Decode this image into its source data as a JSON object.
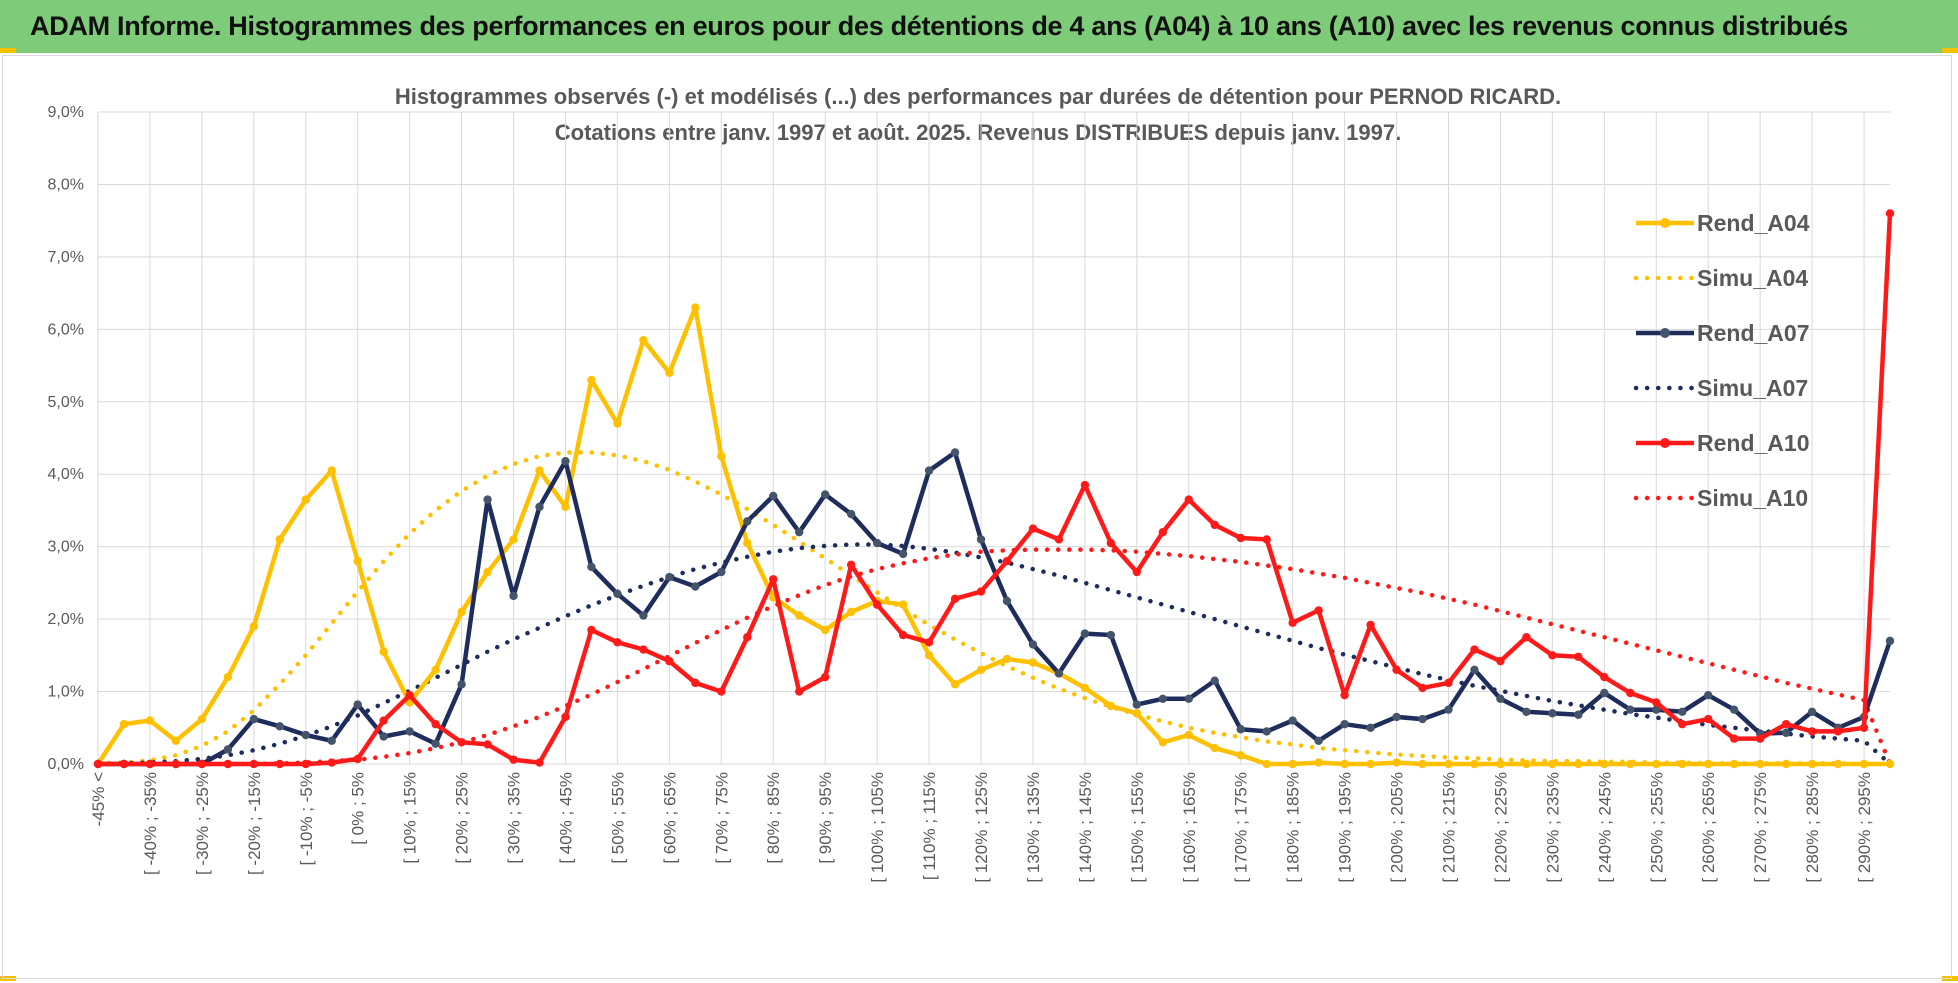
{
  "header": {
    "title": "ADAM Informe. Histogrammes des performances en euros pour des détentions de 4 ans (A04) à 10 ans (A10) avec les revenus connus distribués"
  },
  "colors": {
    "banner": "#7ecb7a",
    "A04": "#FFC000",
    "A07": "#1F2D5C",
    "A10": "#FF1A1A",
    "marker07": "#44546A",
    "grid": "#d9d9d9"
  },
  "chart_data": {
    "type": "line",
    "title": "Histogrammes observés (-) et modélisés (...) des performances par durées de détention pour PERNOD RICARD.",
    "subtitle": "Cotations entre janv. 1997 et août. 2025. Revenus DISTRIBUES depuis janv. 1997.",
    "ylim": [
      0,
      9
    ],
    "y_ticks": [
      "0,0%",
      "1,0%",
      "2,0%",
      "3,0%",
      "4,0%",
      "5,0%",
      "6,0%",
      "7,0%",
      "8,0%",
      "9,0%"
    ],
    "grid": true,
    "legend_position": "right",
    "x_tick_labels": [
      "-45% <",
      "[ -40% ; -35%",
      "[ -30% ; -25%",
      "[ -20% ; -15%",
      "[ -10% ; -5%",
      "[ 0% ; 5%",
      "[ 10% ; 15%",
      "[ 20% ; 25%",
      "[ 30% ; 35%",
      "[ 40% ; 45%",
      "[ 50% ; 55%",
      "[ 60% ; 65%",
      "[ 70% ; 75%",
      "[ 80% ; 85%",
      "[ 90% ; 95%",
      "[ 100% ; 105%",
      "[ 110% ; 115%",
      "[ 120% ; 125%",
      "[ 130% ; 135%",
      "[ 140% ; 145%",
      "[ 150% ; 155%",
      "[ 160% ; 165%",
      "[ 170% ; 175%",
      "[ 180% ; 185%",
      "[ 190% ; 195%",
      "[ 200% ; 205%",
      "[ 210% ; 215%",
      "[ 220% ; 225%",
      "[ 230% ; 235%",
      "[ 240% ; 245%",
      "[ 250% ; 255%",
      "[ 260% ; 265%",
      "[ 270% ; 275%",
      "[ 280% ; 285%",
      "[ 290% ; 295%"
    ],
    "series": [
      {
        "name": "Rend_A04",
        "style": "solid",
        "values": [
          0.0,
          0.55,
          0.6,
          0.32,
          0.62,
          1.2,
          1.9,
          3.1,
          3.65,
          4.05,
          2.8,
          1.55,
          0.85,
          1.3,
          2.1,
          2.65,
          3.1,
          4.05,
          3.55,
          5.3,
          4.7,
          5.85,
          5.4,
          6.3,
          4.25,
          3.05,
          2.3,
          2.05,
          1.85,
          2.1,
          2.25,
          2.2,
          1.5,
          1.1,
          1.3,
          1.45,
          1.4,
          1.25,
          1.05,
          0.8,
          0.7,
          0.3,
          0.4,
          0.22,
          0.12,
          0.0,
          0.0,
          0.02,
          0.0,
          0.0,
          0.02,
          0.0,
          0.0,
          0.0,
          0.0,
          0.0,
          0.0,
          0.0,
          0.0,
          0.0,
          0.0,
          0.0,
          0.0,
          0.0,
          0.0,
          0.0,
          0.0,
          0.0,
          0.0,
          0.0
        ]
      },
      {
        "name": "Simu_A04",
        "style": "dotted",
        "values": [
          0.01,
          0.02,
          0.05,
          0.12,
          0.25,
          0.45,
          0.74,
          1.1,
          1.5,
          1.94,
          2.38,
          2.8,
          3.18,
          3.5,
          3.77,
          3.98,
          4.14,
          4.25,
          4.3,
          4.3,
          4.26,
          4.18,
          4.06,
          3.9,
          3.72,
          3.52,
          3.3,
          3.07,
          2.84,
          2.6,
          2.37,
          2.14,
          1.92,
          1.72,
          1.53,
          1.35,
          1.19,
          1.04,
          0.91,
          0.79,
          0.68,
          0.59,
          0.5,
          0.43,
          0.37,
          0.31,
          0.27,
          0.22,
          0.19,
          0.16,
          0.13,
          0.11,
          0.09,
          0.08,
          0.06,
          0.05,
          0.04,
          0.04,
          0.03,
          0.03,
          0.02,
          0.02,
          0.01,
          0.01,
          0.01,
          0.01,
          0.01,
          0.01,
          0.0,
          0.0
        ]
      },
      {
        "name": "Rend_A07",
        "style": "solid",
        "values": [
          0.0,
          0.0,
          0.0,
          0.0,
          0.0,
          0.2,
          0.62,
          0.52,
          0.4,
          0.32,
          0.82,
          0.38,
          0.45,
          0.28,
          1.1,
          3.65,
          2.32,
          3.55,
          4.18,
          2.72,
          2.35,
          2.05,
          2.58,
          2.45,
          2.65,
          3.35,
          3.7,
          3.2,
          3.72,
          3.45,
          3.05,
          2.9,
          4.05,
          4.3,
          3.1,
          2.25,
          1.65,
          1.25,
          1.8,
          1.78,
          0.82,
          0.9,
          0.9,
          1.15,
          0.48,
          0.45,
          0.6,
          0.32,
          0.55,
          0.5,
          0.65,
          0.62,
          0.75,
          1.3,
          0.9,
          0.72,
          0.7,
          0.68,
          0.98,
          0.75,
          0.75,
          0.72,
          0.95,
          0.75,
          0.42,
          0.43,
          0.72,
          0.5,
          0.65,
          1.7
        ]
      },
      {
        "name": "Simu_A07",
        "style": "dotted",
        "values": [
          0.0,
          0.01,
          0.02,
          0.04,
          0.07,
          0.12,
          0.19,
          0.28,
          0.39,
          0.52,
          0.67,
          0.84,
          1.01,
          1.19,
          1.37,
          1.55,
          1.72,
          1.88,
          2.04,
          2.19,
          2.33,
          2.46,
          2.58,
          2.69,
          2.78,
          2.86,
          2.93,
          2.98,
          3.01,
          3.03,
          3.03,
          3.01,
          2.97,
          2.92,
          2.85,
          2.78,
          2.69,
          2.6,
          2.5,
          2.4,
          2.3,
          2.2,
          2.1,
          2.0,
          1.9,
          1.8,
          1.7,
          1.6,
          1.51,
          1.42,
          1.33,
          1.24,
          1.16,
          1.08,
          1.01,
          0.94,
          0.87,
          0.81,
          0.75,
          0.69,
          0.64,
          0.59,
          0.54,
          0.5,
          0.46,
          0.42,
          0.38,
          0.35,
          0.32,
          0.0
        ]
      },
      {
        "name": "Rend_A10",
        "style": "solid",
        "values": [
          0.0,
          0.0,
          0.0,
          0.0,
          0.0,
          0.0,
          0.0,
          0.0,
          0.0,
          0.02,
          0.07,
          0.6,
          0.95,
          0.55,
          0.3,
          0.27,
          0.06,
          0.02,
          0.65,
          1.85,
          1.68,
          1.58,
          1.42,
          1.12,
          1.0,
          1.75,
          2.55,
          1.0,
          1.2,
          2.75,
          2.2,
          1.78,
          1.68,
          2.28,
          2.38,
          2.8,
          3.25,
          3.1,
          3.85,
          3.05,
          2.65,
          3.2,
          3.65,
          3.3,
          3.12,
          3.1,
          1.95,
          2.12,
          0.95,
          1.92,
          1.3,
          1.05,
          1.12,
          1.58,
          1.42,
          1.75,
          1.5,
          1.48,
          1.2,
          0.98,
          0.85,
          0.55,
          0.62,
          0.35,
          0.35,
          0.55,
          0.45,
          0.45,
          0.5,
          7.6
        ]
      },
      {
        "name": "Simu_A10",
        "style": "dotted",
        "values": [
          0.0,
          0.0,
          0.0,
          0.0,
          0.0,
          0.0,
          0.0,
          0.01,
          0.02,
          0.04,
          0.06,
          0.1,
          0.15,
          0.22,
          0.3,
          0.4,
          0.52,
          0.65,
          0.8,
          0.96,
          1.13,
          1.31,
          1.49,
          1.67,
          1.85,
          2.02,
          2.18,
          2.33,
          2.47,
          2.59,
          2.69,
          2.77,
          2.84,
          2.89,
          2.93,
          2.95,
          2.96,
          2.96,
          2.96,
          2.95,
          2.93,
          2.9,
          2.87,
          2.83,
          2.79,
          2.74,
          2.69,
          2.63,
          2.57,
          2.5,
          2.43,
          2.36,
          2.28,
          2.2,
          2.11,
          2.02,
          1.93,
          1.84,
          1.75,
          1.66,
          1.57,
          1.48,
          1.39,
          1.3,
          1.21,
          1.12,
          1.04,
          0.96,
          0.88,
          0.0
        ]
      }
    ]
  }
}
